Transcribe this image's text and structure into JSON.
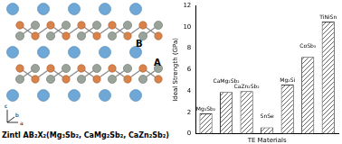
{
  "chart_data": {
    "type": "bar",
    "categories": [
      "Mg₃Sb₂",
      "CaMg₂Sb₂",
      "CaZn₂Sb₂",
      "SnSe",
      "Mg₂Si",
      "CoSb₃",
      "TiNiSn"
    ],
    "values": [
      1.9,
      3.9,
      4.0,
      0.6,
      4.6,
      7.2,
      10.5
    ],
    "color": "#404040",
    "x_label": "TE Materials",
    "y_label": "Ideal Strength (GPa)",
    "ylim": [
      0,
      12
    ],
    "yticks": [
      0,
      2,
      4,
      6,
      8,
      10,
      12
    ],
    "grid": false,
    "tick_labels": "y"
  },
  "structure": {
    "caption": "Zintl AB₂X₂(Mg₃Sb₂, CaMg₂Sb₂, CaZn₂Sb₂)",
    "site_labels": [
      "A",
      "B"
    ],
    "axis_labels": [
      "a",
      "b",
      "c"
    ]
  }
}
